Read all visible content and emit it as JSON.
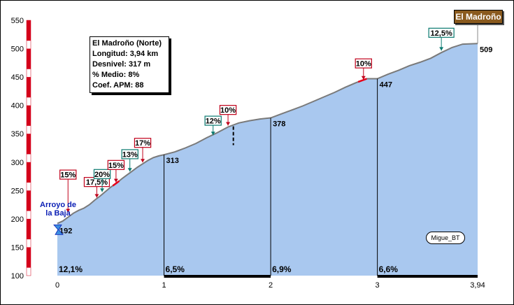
{
  "chart_data": {
    "type": "area",
    "title": "El Madroño",
    "y_ticks": [
      "550",
      "500",
      "450",
      "400",
      "350",
      "300",
      "250",
      "200",
      "150",
      "100"
    ],
    "x_ticks": [
      "0",
      "1",
      "2",
      "3",
      "3,94"
    ],
    "ylim": [
      100,
      550
    ],
    "xlim": [
      0,
      3.94
    ],
    "profile": {
      "x": [
        0,
        0.05,
        0.1,
        0.15,
        0.2,
        0.25,
        0.3,
        0.35,
        0.4,
        0.45,
        0.5,
        0.55,
        0.6,
        0.65,
        0.7,
        0.75,
        0.8,
        0.85,
        0.9,
        0.95,
        1.0,
        1.1,
        1.2,
        1.3,
        1.4,
        1.5,
        1.6,
        1.7,
        1.8,
        1.9,
        2.0,
        2.1,
        2.2,
        2.3,
        2.4,
        2.5,
        2.6,
        2.7,
        2.8,
        2.9,
        3.0,
        3.1,
        3.2,
        3.3,
        3.4,
        3.5,
        3.6,
        3.7,
        3.8,
        3.94
      ],
      "y": [
        192,
        196,
        203,
        210,
        215,
        219,
        225,
        233,
        240,
        248,
        256,
        262,
        270,
        277,
        284,
        291,
        297,
        303,
        308,
        311,
        313,
        318,
        325,
        333,
        343,
        352,
        362,
        369,
        373,
        376,
        378,
        385,
        392,
        399,
        407,
        415,
        423,
        432,
        440,
        447,
        447,
        455,
        462,
        470,
        476,
        483,
        493,
        502,
        508,
        509
      ]
    },
    "elevation_labels": [
      {
        "x": 0,
        "y": 192,
        "text": "192"
      },
      {
        "x": 1,
        "y": 313,
        "text": "313"
      },
      {
        "x": 2,
        "y": 378,
        "text": "378"
      },
      {
        "x": 3,
        "y": 447,
        "text": "447"
      },
      {
        "x": 3.94,
        "y": 509,
        "text": "509"
      }
    ],
    "segment_gradients": [
      {
        "x": 0,
        "text": "12,1%"
      },
      {
        "x": 1,
        "text": "6,5%"
      },
      {
        "x": 2,
        "text": "6,9%"
      },
      {
        "x": 3,
        "text": "6,6%"
      }
    ],
    "ramp_annotations": [
      {
        "text": "15%",
        "x": 0.1,
        "tip_y": 209,
        "box_y": 270,
        "color": "#c0001a"
      },
      {
        "text": "17,5%",
        "x": 0.37,
        "tip_y": 235,
        "box_y": 257,
        "color": "#c0001a"
      },
      {
        "text": "20%",
        "x": 0.42,
        "tip_y": 245,
        "box_y": 271,
        "color": "#0a7a70"
      },
      {
        "text": "15%",
        "x": 0.55,
        "tip_y": 262,
        "box_y": 287,
        "color": "#c0001a"
      },
      {
        "text": "13%",
        "x": 0.68,
        "tip_y": 281,
        "box_y": 306,
        "color": "#0a7a70"
      },
      {
        "text": "17%",
        "x": 0.8,
        "tip_y": 297,
        "box_y": 326,
        "color": "#c0001a"
      },
      {
        "text": "12%",
        "x": 1.46,
        "tip_y": 345,
        "box_y": 365,
        "color": "#0a7a70"
      },
      {
        "text": "10%",
        "x": 1.6,
        "tip_y": 362,
        "box_y": 384,
        "color": "#c0001a"
      },
      {
        "text": "10%",
        "x": 2.87,
        "tip_y": 443,
        "box_y": 466,
        "color": "#c0001a"
      },
      {
        "text": "12,5%",
        "x": 3.6,
        "tip_y": 494,
        "box_y": 520,
        "color": "#0a7a70"
      }
    ]
  },
  "info_box": {
    "name": "El Madroño (Norte)",
    "length": "Longitud: 3,94 km",
    "elevation_gain": "Desnivel: 317 m",
    "avg_gradient": "% Medio: 8%",
    "apm_coef": "Coef. APM: 88"
  },
  "start_label": "Arroyo de la Baja",
  "summit_label": "El Madroño",
  "author": "Migue_BT",
  "colors": {
    "fill": "#a9c8ef",
    "profile_line": "#7a7a7a",
    "red_ramp": "#e8001a",
    "teal_ramp": "#0a7a70",
    "summit_box": "#8a5a1e",
    "start_label": "#0a1eb4"
  }
}
